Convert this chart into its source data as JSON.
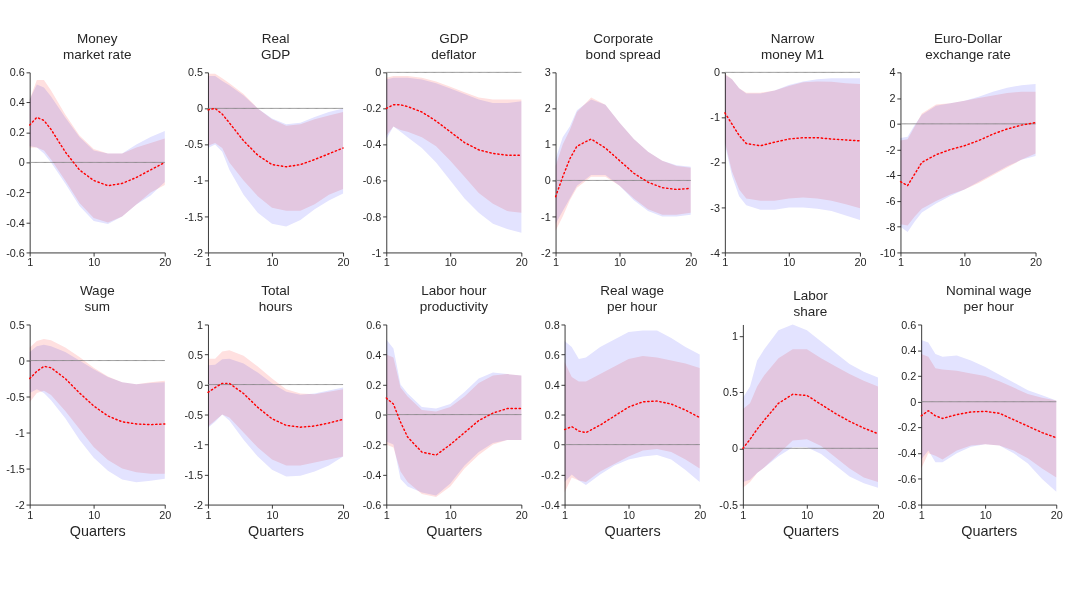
{
  "chart_data": [
    {
      "type": "line",
      "title": "Money\nmarket rate",
      "x": [
        1,
        2,
        3,
        4,
        6,
        8,
        10,
        12,
        14,
        16,
        18,
        20
      ],
      "xlim": [
        1,
        20
      ],
      "xticks": [
        1,
        10,
        20
      ],
      "ylim": [
        -0.6,
        0.6
      ],
      "yticks": [
        -0.6,
        -0.4,
        -0.2,
        0,
        0.2,
        0.4,
        0.6
      ],
      "grid": false,
      "ref_lines": [
        {
          "axis": "y",
          "value": 0,
          "color": "#808080"
        }
      ],
      "series": [
        {
          "type": "area",
          "color": "#e3e3ff",
          "values": [
            null,
            null,
            null,
            null,
            null,
            null,
            null,
            null,
            null,
            null,
            null,
            null
          ],
          "lower": [
            0.11,
            0.1,
            0.06,
            0.0,
            -0.14,
            -0.29,
            -0.39,
            -0.41,
            -0.36,
            -0.28,
            -0.22,
            -0.13
          ],
          "upper": [
            0.42,
            0.52,
            0.5,
            0.44,
            0.3,
            0.17,
            0.08,
            0.06,
            0.06,
            0.12,
            0.17,
            0.21
          ]
        },
        {
          "type": "area",
          "color": "#ffe0e0",
          "values": [
            null,
            null,
            null,
            null,
            null,
            null,
            null,
            null,
            null,
            null,
            null,
            null
          ],
          "lower": [
            0.1,
            0.1,
            0.08,
            0.02,
            -0.12,
            -0.27,
            -0.37,
            -0.4,
            -0.36,
            -0.28,
            -0.2,
            -0.15
          ],
          "upper": [
            0.42,
            0.55,
            0.55,
            0.48,
            0.32,
            0.18,
            0.09,
            0.06,
            0.06,
            0.1,
            0.13,
            0.16
          ]
        },
        {
          "type": "line",
          "color": "#ff0000",
          "line_style": "dotted",
          "values": [
            0.25,
            0.3,
            0.28,
            0.22,
            0.07,
            -0.05,
            -0.12,
            -0.155,
            -0.14,
            -0.1,
            -0.05,
            0.0
          ]
        }
      ]
    },
    {
      "type": "line",
      "title": "Real\nGDP",
      "x": [
        1,
        2,
        3,
        4,
        6,
        8,
        10,
        12,
        14,
        16,
        18,
        20
      ],
      "xlim": [
        1,
        20
      ],
      "xticks": [
        1,
        10,
        20
      ],
      "ylim": [
        -2,
        0.5
      ],
      "yticks": [
        -2,
        -1.5,
        -1,
        -0.5,
        0,
        0.5
      ],
      "grid": false,
      "ref_lines": [
        {
          "axis": "y",
          "value": 0,
          "color": "#808080"
        }
      ],
      "series": [
        {
          "type": "area",
          "color": "#e3e3ff",
          "values": [
            null,
            null,
            null,
            null,
            null,
            null,
            null,
            null,
            null,
            null,
            null,
            null
          ],
          "lower": [
            -0.55,
            -0.5,
            -0.6,
            -0.85,
            -1.2,
            -1.45,
            -1.6,
            -1.64,
            -1.55,
            -1.4,
            -1.28,
            -1.18
          ],
          "upper": [
            0.45,
            0.45,
            0.38,
            0.32,
            0.18,
            0.0,
            -0.14,
            -0.22,
            -0.2,
            -0.12,
            -0.05,
            0.0
          ]
        },
        {
          "type": "area",
          "color": "#ffe0e0",
          "values": [
            null,
            null,
            null,
            null,
            null,
            null,
            null,
            null,
            null,
            null,
            null,
            null
          ],
          "lower": [
            -0.52,
            -0.48,
            -0.55,
            -0.75,
            -1.0,
            -1.22,
            -1.38,
            -1.42,
            -1.42,
            -1.33,
            -1.2,
            -1.12
          ],
          "upper": [
            0.48,
            0.48,
            0.42,
            0.35,
            0.2,
            0.0,
            -0.15,
            -0.24,
            -0.22,
            -0.15,
            -0.1,
            -0.05
          ]
        },
        {
          "type": "line",
          "color": "#ff0000",
          "line_style": "dotted",
          "values": [
            -0.02,
            0.0,
            -0.08,
            -0.2,
            -0.45,
            -0.65,
            -0.78,
            -0.81,
            -0.78,
            -0.71,
            -0.63,
            -0.55
          ]
        }
      ]
    },
    {
      "type": "line",
      "title": "GDP\ndeflator",
      "x": [
        1,
        2,
        3,
        4,
        6,
        8,
        10,
        12,
        14,
        16,
        18,
        20
      ],
      "xlim": [
        1,
        20
      ],
      "xticks": [
        1,
        10,
        20
      ],
      "ylim": [
        -1,
        0
      ],
      "yticks": [
        -1,
        -0.8,
        -0.6,
        -0.4,
        -0.2,
        0
      ],
      "grid": false,
      "ref_lines": [
        {
          "axis": "y",
          "value": 0,
          "color": "#808080"
        }
      ],
      "series": [
        {
          "type": "area",
          "color": "#e3e3ff",
          "values": [
            null,
            null,
            null,
            null,
            null,
            null,
            null,
            null,
            null,
            null,
            null,
            null
          ],
          "lower": [
            -0.37,
            -0.3,
            -0.33,
            -0.36,
            -0.42,
            -0.5,
            -0.6,
            -0.7,
            -0.78,
            -0.84,
            -0.87,
            -0.89
          ],
          "upper": [
            -0.04,
            -0.03,
            -0.03,
            -0.03,
            -0.04,
            -0.06,
            -0.09,
            -0.12,
            -0.15,
            -0.17,
            -0.17,
            -0.16
          ]
        },
        {
          "type": "area",
          "color": "#ffe0e0",
          "values": [
            null,
            null,
            null,
            null,
            null,
            null,
            null,
            null,
            null,
            null,
            null,
            null
          ],
          "lower": [
            -0.35,
            -0.3,
            -0.32,
            -0.33,
            -0.36,
            -0.41,
            -0.49,
            -0.58,
            -0.67,
            -0.73,
            -0.77,
            -0.78
          ],
          "upper": [
            -0.03,
            -0.02,
            -0.02,
            -0.02,
            -0.03,
            -0.05,
            -0.08,
            -0.11,
            -0.14,
            -0.15,
            -0.15,
            -0.15
          ]
        },
        {
          "type": "line",
          "color": "#ff0000",
          "line_style": "dotted",
          "values": [
            -0.2,
            -0.18,
            -0.18,
            -0.19,
            -0.22,
            -0.27,
            -0.33,
            -0.39,
            -0.43,
            -0.45,
            -0.46,
            -0.46
          ]
        }
      ]
    },
    {
      "type": "line",
      "title": "Corporate\nbond spread",
      "x": [
        1,
        2,
        3,
        4,
        6,
        8,
        10,
        12,
        14,
        16,
        18,
        20
      ],
      "xlim": [
        1,
        20
      ],
      "xticks": [
        1,
        10,
        20
      ],
      "ylim": [
        -2,
        3
      ],
      "yticks": [
        -2,
        -1,
        0,
        1,
        2,
        3
      ],
      "grid": false,
      "ref_lines": [
        {
          "axis": "y",
          "value": 0,
          "color": "#808080"
        }
      ],
      "series": [
        {
          "type": "area",
          "color": "#e3e3ff",
          "values": [
            null,
            null,
            null,
            null,
            null,
            null,
            null,
            null,
            null,
            null,
            null,
            null
          ],
          "lower": [
            -1.2,
            -0.85,
            -0.5,
            -0.15,
            0.15,
            0.15,
            -0.15,
            -0.55,
            -0.85,
            -1.0,
            -1.0,
            -0.95
          ],
          "upper": [
            0.6,
            1.2,
            1.5,
            1.95,
            2.25,
            2.1,
            1.6,
            1.15,
            0.8,
            0.55,
            0.42,
            0.38
          ]
        },
        {
          "type": "area",
          "color": "#ffe0e0",
          "values": [
            null,
            null,
            null,
            null,
            null,
            null,
            null,
            null,
            null,
            null,
            null,
            null
          ],
          "lower": [
            -1.4,
            -1.0,
            -0.55,
            -0.2,
            0.1,
            0.1,
            -0.15,
            -0.5,
            -0.8,
            -0.95,
            -0.95,
            -0.9
          ],
          "upper": [
            0.4,
            1.0,
            1.4,
            1.9,
            2.3,
            2.1,
            1.6,
            1.15,
            0.8,
            0.55,
            0.4,
            0.35
          ]
        },
        {
          "type": "line",
          "color": "#ff0000",
          "line_style": "dotted",
          "values": [
            -0.45,
            0.1,
            0.6,
            0.95,
            1.15,
            0.9,
            0.55,
            0.2,
            -0.05,
            -0.2,
            -0.25,
            -0.22
          ]
        }
      ]
    },
    {
      "type": "line",
      "title": "Narrow\nmoney M1",
      "x": [
        1,
        2,
        3,
        4,
        6,
        8,
        10,
        12,
        14,
        16,
        18,
        20
      ],
      "xlim": [
        1,
        20
      ],
      "xticks": [
        1,
        10,
        20
      ],
      "ylim": [
        -4,
        0
      ],
      "yticks": [
        -4,
        -3,
        -2,
        -1,
        0
      ],
      "grid": false,
      "ref_lines": [
        {
          "axis": "y",
          "value": 0,
          "color": "#808080"
        }
      ],
      "series": [
        {
          "type": "area",
          "color": "#e3e3ff",
          "values": [
            null,
            null,
            null,
            null,
            null,
            null,
            null,
            null,
            null,
            null,
            null,
            null
          ],
          "lower": [
            -1.6,
            -2.3,
            -2.75,
            -2.95,
            -3.05,
            -3.05,
            -3.0,
            -3.0,
            -3.03,
            -3.08,
            -3.18,
            -3.28
          ],
          "upper": [
            -0.05,
            -0.15,
            -0.35,
            -0.47,
            -0.47,
            -0.4,
            -0.28,
            -0.2,
            -0.15,
            -0.13,
            -0.13,
            -0.13
          ]
        },
        {
          "type": "area",
          "color": "#ffe0e0",
          "values": [
            null,
            null,
            null,
            null,
            null,
            null,
            null,
            null,
            null,
            null,
            null,
            null
          ],
          "lower": [
            -1.55,
            -2.2,
            -2.6,
            -2.8,
            -2.85,
            -2.85,
            -2.8,
            -2.78,
            -2.8,
            -2.85,
            -2.93,
            -3.02
          ],
          "upper": [
            -0.03,
            -0.15,
            -0.35,
            -0.45,
            -0.45,
            -0.4,
            -0.3,
            -0.22,
            -0.2,
            -0.21,
            -0.24,
            -0.26
          ]
        },
        {
          "type": "line",
          "color": "#ff0000",
          "line_style": "dotted",
          "values": [
            -0.9,
            -1.15,
            -1.4,
            -1.58,
            -1.63,
            -1.55,
            -1.48,
            -1.45,
            -1.45,
            -1.48,
            -1.5,
            -1.52
          ]
        }
      ]
    },
    {
      "type": "line",
      "title": "Euro-Dollar\nexchange rate",
      "x": [
        1,
        2,
        3,
        4,
        6,
        8,
        10,
        12,
        14,
        16,
        18,
        20
      ],
      "xlim": [
        1,
        20
      ],
      "xticks": [
        1,
        10,
        20
      ],
      "ylim": [
        -10,
        4
      ],
      "yticks": [
        -10,
        -8,
        -6,
        -4,
        -2,
        0,
        2,
        4
      ],
      "grid": false,
      "ref_lines": [
        {
          "axis": "y",
          "value": 0,
          "color": "#808080"
        }
      ],
      "series": [
        {
          "type": "area",
          "color": "#e3e3ff",
          "values": [
            null,
            null,
            null,
            null,
            null,
            null,
            null,
            null,
            null,
            null,
            null,
            null
          ],
          "lower": [
            -8.0,
            -8.4,
            -7.6,
            -6.9,
            -6.2,
            -5.6,
            -5.1,
            -4.5,
            -3.9,
            -3.3,
            -2.8,
            -2.5
          ],
          "upper": [
            -1.1,
            -1.0,
            -0.1,
            0.7,
            1.4,
            1.6,
            1.8,
            2.1,
            2.5,
            2.8,
            3.0,
            3.1
          ]
        },
        {
          "type": "area",
          "color": "#ffe0e0",
          "values": [
            null,
            null,
            null,
            null,
            null,
            null,
            null,
            null,
            null,
            null,
            null,
            null
          ],
          "lower": [
            -7.8,
            -7.9,
            -7.2,
            -6.6,
            -6.0,
            -5.5,
            -5.1,
            -4.6,
            -4.0,
            -3.4,
            -2.8,
            -2.3
          ],
          "upper": [
            -1.3,
            -1.2,
            -0.2,
            0.8,
            1.5,
            1.6,
            1.8,
            2.0,
            2.2,
            2.4,
            2.5,
            2.5
          ]
        },
        {
          "type": "line",
          "color": "#ff0000",
          "line_style": "dotted",
          "values": [
            -4.5,
            -4.8,
            -3.9,
            -3.0,
            -2.4,
            -2.0,
            -1.7,
            -1.3,
            -0.8,
            -0.4,
            -0.1,
            0.1
          ]
        }
      ]
    },
    {
      "type": "line",
      "title": "Wage\nsum",
      "xlabel": "Quarters",
      "x": [
        1,
        2,
        3,
        4,
        6,
        8,
        10,
        12,
        14,
        16,
        18,
        20
      ],
      "xlim": [
        1,
        20
      ],
      "xticks": [
        1,
        10,
        20
      ],
      "ylim": [
        -2,
        0.5
      ],
      "yticks": [
        -2,
        -1.5,
        -1,
        -0.5,
        0,
        0.5
      ],
      "grid": false,
      "ref_lines": [
        {
          "axis": "y",
          "value": 0,
          "color": "#808080"
        }
      ],
      "series": [
        {
          "type": "area",
          "color": "#e3e3ff",
          "values": [
            null,
            null,
            null,
            null,
            null,
            null,
            null,
            null,
            null,
            null,
            null,
            null
          ],
          "lower": [
            -0.45,
            -0.4,
            -0.45,
            -0.55,
            -0.8,
            -1.1,
            -1.35,
            -1.53,
            -1.65,
            -1.69,
            -1.67,
            -1.64
          ],
          "upper": [
            0.12,
            0.2,
            0.22,
            0.2,
            0.12,
            0.0,
            -0.12,
            -0.23,
            -0.3,
            -0.33,
            -0.31,
            -0.3
          ]
        },
        {
          "type": "area",
          "color": "#ffe0e0",
          "values": [
            null,
            null,
            null,
            null,
            null,
            null,
            null,
            null,
            null,
            null,
            null,
            null
          ],
          "lower": [
            -0.58,
            -0.45,
            -0.42,
            -0.48,
            -0.7,
            -0.95,
            -1.2,
            -1.38,
            -1.5,
            -1.55,
            -1.57,
            -1.57
          ],
          "upper": [
            0.18,
            0.27,
            0.3,
            0.28,
            0.18,
            0.05,
            -0.1,
            -0.22,
            -0.3,
            -0.33,
            -0.3,
            -0.28
          ]
        },
        {
          "type": "line",
          "color": "#ff0000",
          "line_style": "dotted",
          "values": [
            -0.25,
            -0.15,
            -0.08,
            -0.1,
            -0.25,
            -0.45,
            -0.63,
            -0.77,
            -0.85,
            -0.88,
            -0.89,
            -0.88
          ]
        }
      ]
    },
    {
      "type": "line",
      "title": "Total\nhours",
      "xlabel": "Quarters",
      "x": [
        1,
        2,
        3,
        4,
        6,
        8,
        10,
        12,
        14,
        16,
        18,
        20
      ],
      "xlim": [
        1,
        20
      ],
      "xticks": [
        1,
        10,
        20
      ],
      "ylim": [
        -2,
        1
      ],
      "yticks": [
        -2,
        -1.5,
        -1,
        -0.5,
        0,
        0.5,
        1
      ],
      "grid": false,
      "ref_lines": [
        {
          "axis": "y",
          "value": 0,
          "color": "#808080"
        }
      ],
      "series": [
        {
          "type": "area",
          "color": "#e3e3ff",
          "values": [
            null,
            null,
            null,
            null,
            null,
            null,
            null,
            null,
            null,
            null,
            null,
            null
          ],
          "lower": [
            -0.72,
            -0.62,
            -0.5,
            -0.6,
            -0.92,
            -1.2,
            -1.42,
            -1.53,
            -1.52,
            -1.45,
            -1.35,
            -1.2
          ],
          "upper": [
            0.32,
            0.33,
            0.42,
            0.43,
            0.35,
            0.2,
            0.02,
            -0.12,
            -0.17,
            -0.15,
            -0.1,
            -0.05
          ]
        },
        {
          "type": "area",
          "color": "#ffe0e0",
          "values": [
            null,
            null,
            null,
            null,
            null,
            null,
            null,
            null,
            null,
            null,
            null,
            null
          ],
          "lower": [
            -0.7,
            -0.6,
            -0.5,
            -0.55,
            -0.8,
            -1.05,
            -1.25,
            -1.35,
            -1.35,
            -1.3,
            -1.25,
            -1.2
          ],
          "upper": [
            0.43,
            0.43,
            0.55,
            0.57,
            0.48,
            0.3,
            0.1,
            -0.08,
            -0.15,
            -0.16,
            -0.12,
            -0.08
          ]
        },
        {
          "type": "line",
          "color": "#ff0000",
          "line_style": "dotted",
          "values": [
            -0.13,
            -0.05,
            0.02,
            0.02,
            -0.15,
            -0.38,
            -0.57,
            -0.68,
            -0.71,
            -0.69,
            -0.64,
            -0.58
          ]
        }
      ]
    },
    {
      "type": "line",
      "title": "Labor hour\nproductivity",
      "xlabel": "Quarters",
      "x": [
        1,
        2,
        3,
        4,
        6,
        8,
        10,
        12,
        14,
        16,
        18,
        20
      ],
      "xlim": [
        1,
        20
      ],
      "xticks": [
        1,
        10,
        20
      ],
      "ylim": [
        -0.6,
        0.6
      ],
      "yticks": [
        -0.6,
        -0.4,
        -0.2,
        0,
        0.2,
        0.4,
        0.6
      ],
      "grid": false,
      "ref_lines": [
        {
          "axis": "y",
          "value": 0,
          "color": "#808080"
        }
      ],
      "series": [
        {
          "type": "area",
          "color": "#e3e3ff",
          "values": [
            null,
            null,
            null,
            null,
            null,
            null,
            null,
            null,
            null,
            null,
            null,
            null
          ],
          "lower": [
            -0.18,
            -0.2,
            -0.43,
            -0.48,
            -0.52,
            -0.54,
            -0.46,
            -0.34,
            -0.25,
            -0.19,
            -0.17,
            -0.17
          ],
          "upper": [
            0.5,
            0.44,
            0.2,
            0.14,
            0.05,
            0.04,
            0.07,
            0.15,
            0.24,
            0.28,
            0.27,
            0.26
          ]
        },
        {
          "type": "area",
          "color": "#ffe0e0",
          "values": [
            null,
            null,
            null,
            null,
            null,
            null,
            null,
            null,
            null,
            null,
            null,
            null
          ],
          "lower": [
            -0.2,
            -0.22,
            -0.38,
            -0.45,
            -0.53,
            -0.55,
            -0.48,
            -0.36,
            -0.27,
            -0.2,
            -0.17,
            -0.17
          ],
          "upper": [
            0.4,
            0.38,
            0.18,
            0.12,
            0.03,
            0.02,
            0.05,
            0.12,
            0.21,
            0.26,
            0.27,
            0.26
          ]
        },
        {
          "type": "line",
          "color": "#ff0000",
          "line_style": "dotted",
          "values": [
            0.11,
            0.07,
            -0.05,
            -0.15,
            -0.25,
            -0.27,
            -0.2,
            -0.12,
            -0.04,
            0.01,
            0.04,
            0.04
          ]
        }
      ]
    },
    {
      "type": "line",
      "title": "Real wage\nper hour",
      "xlabel": "Quarters",
      "x": [
        1,
        2,
        3,
        4,
        6,
        8,
        10,
        12,
        14,
        16,
        18,
        20
      ],
      "xlim": [
        1,
        20
      ],
      "xticks": [
        1,
        10,
        20
      ],
      "ylim": [
        -0.4,
        0.8
      ],
      "yticks": [
        -0.4,
        -0.2,
        0,
        0.2,
        0.4,
        0.6,
        0.8
      ],
      "grid": false,
      "ref_lines": [
        {
          "axis": "y",
          "value": 0,
          "color": "#808080"
        }
      ],
      "series": [
        {
          "type": "area",
          "color": "#e3e3ff",
          "values": [
            null,
            null,
            null,
            null,
            null,
            null,
            null,
            null,
            null,
            null,
            null,
            null
          ],
          "lower": [
            -0.25,
            -0.2,
            -0.24,
            -0.27,
            -0.2,
            -0.14,
            -0.1,
            -0.08,
            -0.07,
            -0.1,
            -0.17,
            -0.25
          ],
          "upper": [
            0.69,
            0.65,
            0.57,
            0.58,
            0.65,
            0.7,
            0.75,
            0.76,
            0.76,
            0.71,
            0.65,
            0.6
          ]
        },
        {
          "type": "area",
          "color": "#ffe0e0",
          "values": [
            null,
            null,
            null,
            null,
            null,
            null,
            null,
            null,
            null,
            null,
            null,
            null
          ],
          "lower": [
            -0.32,
            -0.22,
            -0.24,
            -0.25,
            -0.18,
            -0.13,
            -0.08,
            -0.04,
            -0.03,
            -0.05,
            -0.1,
            -0.16
          ],
          "upper": [
            0.55,
            0.45,
            0.42,
            0.42,
            0.47,
            0.52,
            0.57,
            0.59,
            0.58,
            0.56,
            0.54,
            0.51
          ]
        },
        {
          "type": "line",
          "color": "#ff0000",
          "line_style": "dotted",
          "values": [
            0.1,
            0.12,
            0.09,
            0.08,
            0.13,
            0.19,
            0.25,
            0.285,
            0.29,
            0.27,
            0.23,
            0.18
          ]
        }
      ]
    },
    {
      "type": "line",
      "title": "Labor\nshare",
      "xlabel": "Quarters",
      "x": [
        1,
        2,
        3,
        4,
        6,
        8,
        10,
        12,
        14,
        16,
        18,
        20
      ],
      "xlim": [
        1,
        20
      ],
      "xticks": [
        1,
        10,
        20
      ],
      "ylim": [
        -0.5,
        1.1
      ],
      "yticks": [
        -0.5,
        0,
        0.5,
        1
      ],
      "grid": false,
      "ref_lines": [
        {
          "axis": "y",
          "value": 0,
          "color": "#808080"
        }
      ],
      "series": [
        {
          "type": "area",
          "color": "#e3e3ff",
          "values": [
            null,
            null,
            null,
            null,
            null,
            null,
            null,
            null,
            null,
            null,
            null,
            null
          ],
          "lower": [
            -0.3,
            -0.28,
            -0.22,
            -0.17,
            -0.07,
            0.01,
            0.01,
            -0.05,
            -0.15,
            -0.25,
            -0.31,
            -0.35
          ],
          "upper": [
            0.45,
            0.55,
            0.78,
            0.88,
            1.05,
            1.1,
            1.05,
            0.95,
            0.85,
            0.75,
            0.68,
            0.63
          ]
        },
        {
          "type": "area",
          "color": "#ffe0e0",
          "values": [
            null,
            null,
            null,
            null,
            null,
            null,
            null,
            null,
            null,
            null,
            null,
            null
          ],
          "lower": [
            -0.35,
            -0.3,
            -0.22,
            -0.17,
            -0.05,
            0.07,
            0.08,
            0.02,
            -0.08,
            -0.18,
            -0.26,
            -0.3
          ],
          "upper": [
            0.35,
            0.4,
            0.55,
            0.65,
            0.8,
            0.88,
            0.88,
            0.8,
            0.73,
            0.66,
            0.6,
            0.55
          ]
        },
        {
          "type": "line",
          "color": "#ff0000",
          "line_style": "dotted",
          "values": [
            0.0,
            0.08,
            0.17,
            0.25,
            0.4,
            0.48,
            0.47,
            0.39,
            0.31,
            0.24,
            0.18,
            0.13
          ]
        }
      ]
    },
    {
      "type": "line",
      "title": "Nominal wage\nper hour",
      "xlabel": "Quarters",
      "x": [
        1,
        2,
        3,
        4,
        6,
        8,
        10,
        12,
        14,
        16,
        18,
        20
      ],
      "xlim": [
        1,
        20
      ],
      "xticks": [
        1,
        10,
        20
      ],
      "ylim": [
        -0.8,
        0.6
      ],
      "yticks": [
        -0.8,
        -0.6,
        -0.4,
        -0.2,
        0,
        0.2,
        0.4,
        0.6
      ],
      "grid": false,
      "ref_lines": [
        {
          "axis": "y",
          "value": 0,
          "color": "#808080"
        }
      ],
      "series": [
        {
          "type": "area",
          "color": "#e3e3ff",
          "values": [
            null,
            null,
            null,
            null,
            null,
            null,
            null,
            null,
            null,
            null,
            null,
            null
          ],
          "lower": [
            -0.45,
            -0.38,
            -0.47,
            -0.47,
            -0.4,
            -0.35,
            -0.33,
            -0.34,
            -0.4,
            -0.48,
            -0.6,
            -0.7
          ],
          "upper": [
            0.48,
            0.46,
            0.37,
            0.35,
            0.36,
            0.32,
            0.27,
            0.21,
            0.15,
            0.09,
            0.05,
            0.01
          ]
        },
        {
          "type": "area",
          "color": "#ffe0e0",
          "values": [
            null,
            null,
            null,
            null,
            null,
            null,
            null,
            null,
            null,
            null,
            null,
            null
          ],
          "lower": [
            -0.52,
            -0.4,
            -0.42,
            -0.45,
            -0.38,
            -0.34,
            -0.33,
            -0.34,
            -0.38,
            -0.44,
            -0.52,
            -0.59
          ],
          "upper": [
            0.37,
            0.35,
            0.26,
            0.25,
            0.24,
            0.22,
            0.2,
            0.16,
            0.11,
            0.06,
            0.03,
            0.01
          ]
        },
        {
          "type": "line",
          "color": "#ff0000",
          "line_style": "dotted",
          "values": [
            -0.11,
            -0.07,
            -0.11,
            -0.13,
            -0.1,
            -0.08,
            -0.075,
            -0.09,
            -0.14,
            -0.19,
            -0.24,
            -0.28
          ]
        }
      ]
    }
  ]
}
